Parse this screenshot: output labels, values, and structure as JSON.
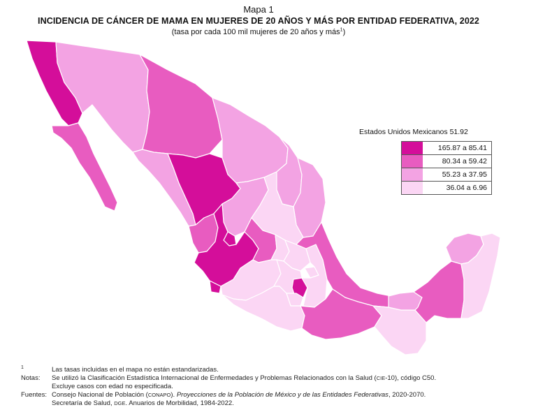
{
  "header": {
    "map_number": "Mapa 1",
    "title": "INCIDENCIA DE CÁNCER DE MAMA EN MUJERES DE 20 AÑOS Y MÁS POR ENTIDAD FEDERATIVA, 2022",
    "subtitle": "(tasa por cada 100 mil mujeres de 20 años y más",
    "subtitle_mark": "1",
    "subtitle_close": ")"
  },
  "legend": {
    "national_label": "Estados Unidos Mexicanos 51.92",
    "classes": [
      {
        "label": "165.87 a 85.41",
        "color": "#d40e9a"
      },
      {
        "label": "80.34 a 59.42",
        "color": "#e85cc0"
      },
      {
        "label": "55.23 a 37.95",
        "color": "#f3a3e3"
      },
      {
        "label": "36.04 a 6.96",
        "color": "#fbd6f4"
      }
    ]
  },
  "map": {
    "border_color": "#ffffff",
    "classes_by_state": {
      "baja-california": 0,
      "baja-california-sur": 1,
      "sonora": 2,
      "chihuahua": 1,
      "coahuila": 2,
      "nuevo-leon": 2,
      "tamaulipas": 2,
      "sinaloa": 2,
      "durango": 0,
      "zacatecas": 2,
      "nayarit": 1,
      "jalisco": 0,
      "colima": 0,
      "aguascalientes": 0,
      "san-luis-potosi": 3,
      "guanajuato": 1,
      "queretaro": 3,
      "hidalgo": 3,
      "michoacan": 3,
      "estado-de-mexico": 3,
      "ciudad-de-mexico": 0,
      "morelos": 3,
      "tlaxcala": 3,
      "puebla": 3,
      "veracruz": 1,
      "guerrero": 3,
      "oaxaca": 1,
      "chiapas": 3,
      "tabasco": 2,
      "campeche": 1,
      "yucatan": 2,
      "quintana-roo": 3
    }
  },
  "notes": {
    "footnote_mark": "1",
    "footnote": "Las tasas incluidas en el mapa no están estandarizadas.",
    "notas_label": "Notas:",
    "notas_line1_a": "Se utilizó la Clasificación Estadística Internacional de Enfermedades y Problemas Relacionados con la Salud (",
    "notas_line1_sc": "CIE",
    "notas_line1_b": "-10), código C50.",
    "notas_line2": "Excluye casos con edad no especificada.",
    "fuentes_label": "Fuentes:",
    "fuentes_line1_a": "Consejo Nacional de Población (",
    "fuentes_line1_sc": "CONAPO",
    "fuentes_line1_b": "). ",
    "fuentes_line1_ital": "Proyecciones de la Población de México y de las Entidades Federativas",
    "fuentes_line1_c": ", 2020-2070.",
    "fuentes_line2_a": "Secretaría de Salud, ",
    "fuentes_line2_sc": "DGE",
    "fuentes_line2_b": ". Anuarios de Morbilidad, 1984-2022."
  }
}
